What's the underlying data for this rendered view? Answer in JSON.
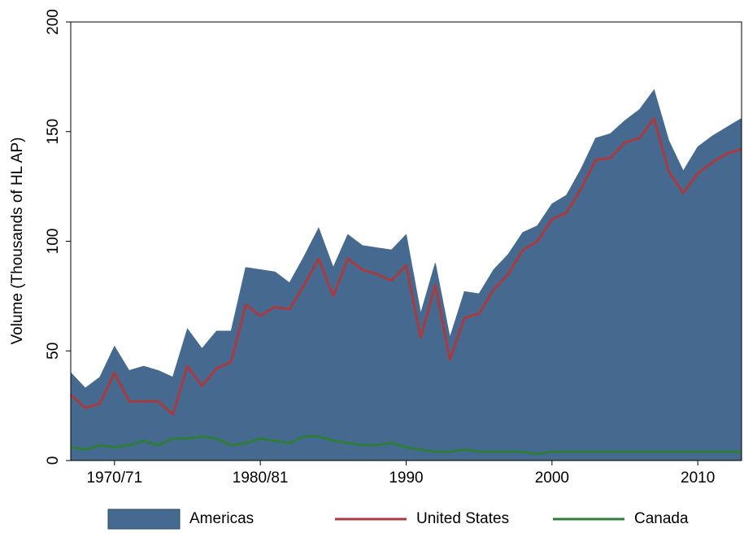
{
  "chart_data": {
    "type": "area",
    "y_label": "Volume (Thousands of HL AP)",
    "x": [
      1967,
      1968,
      1969,
      1970,
      1971,
      1972,
      1973,
      1974,
      1975,
      1976,
      1977,
      1978,
      1979,
      1980,
      1981,
      1982,
      1983,
      1984,
      1985,
      1986,
      1987,
      1988,
      1989,
      1990,
      1991,
      1992,
      1993,
      1994,
      1995,
      1996,
      1997,
      1998,
      1999,
      2000,
      2001,
      2002,
      2003,
      2004,
      2005,
      2006,
      2007,
      2008,
      2009,
      2010,
      2011,
      2012,
      2013
    ],
    "series": [
      {
        "name": "Americas",
        "type": "area",
        "color": "#466a8f",
        "values": [
          40,
          33,
          38,
          52,
          41,
          43,
          41,
          38,
          60,
          51,
          59,
          59,
          88,
          87,
          86,
          81,
          93,
          106,
          88,
          103,
          98,
          97,
          96,
          103,
          67,
          90,
          56,
          77,
          76,
          87,
          94,
          104,
          107,
          117,
          121,
          133,
          147,
          149,
          155,
          160,
          169,
          146,
          132,
          143,
          148,
          152,
          156
        ]
      },
      {
        "name": "United States",
        "type": "line",
        "color": "#a83a40",
        "values": [
          30,
          24,
          26,
          40,
          27,
          27,
          27,
          21,
          43,
          34,
          42,
          45,
          71,
          66,
          70,
          69,
          80,
          92,
          75,
          92,
          87,
          85,
          82,
          89,
          56,
          80,
          46,
          65,
          67,
          78,
          85,
          96,
          100,
          110,
          113,
          124,
          137,
          138,
          145,
          147,
          156,
          132,
          122,
          131,
          136,
          140,
          142
        ]
      },
      {
        "name": "Canada",
        "type": "line",
        "color": "#2e7d3a",
        "values": [
          6,
          5,
          7,
          6,
          7,
          9,
          7,
          10,
          10,
          11,
          10,
          7,
          8,
          10,
          9,
          8,
          11,
          11,
          9,
          8,
          7,
          7,
          8,
          6,
          5,
          4,
          4,
          5,
          4,
          4,
          4,
          4,
          3,
          4,
          4,
          4,
          4,
          4,
          4,
          4,
          4,
          4,
          4,
          4,
          4,
          4,
          4
        ]
      }
    ],
    "xlim": [
      1967,
      2013
    ],
    "xticks": [
      {
        "value": 1970,
        "label": "1970/71"
      },
      {
        "value": 1980,
        "label": "1980/81"
      },
      1990,
      2000,
      2010
    ],
    "ylim": [
      0,
      200
    ],
    "yticks": [
      0,
      50,
      100,
      150,
      200
    ],
    "legend": "bottom"
  }
}
